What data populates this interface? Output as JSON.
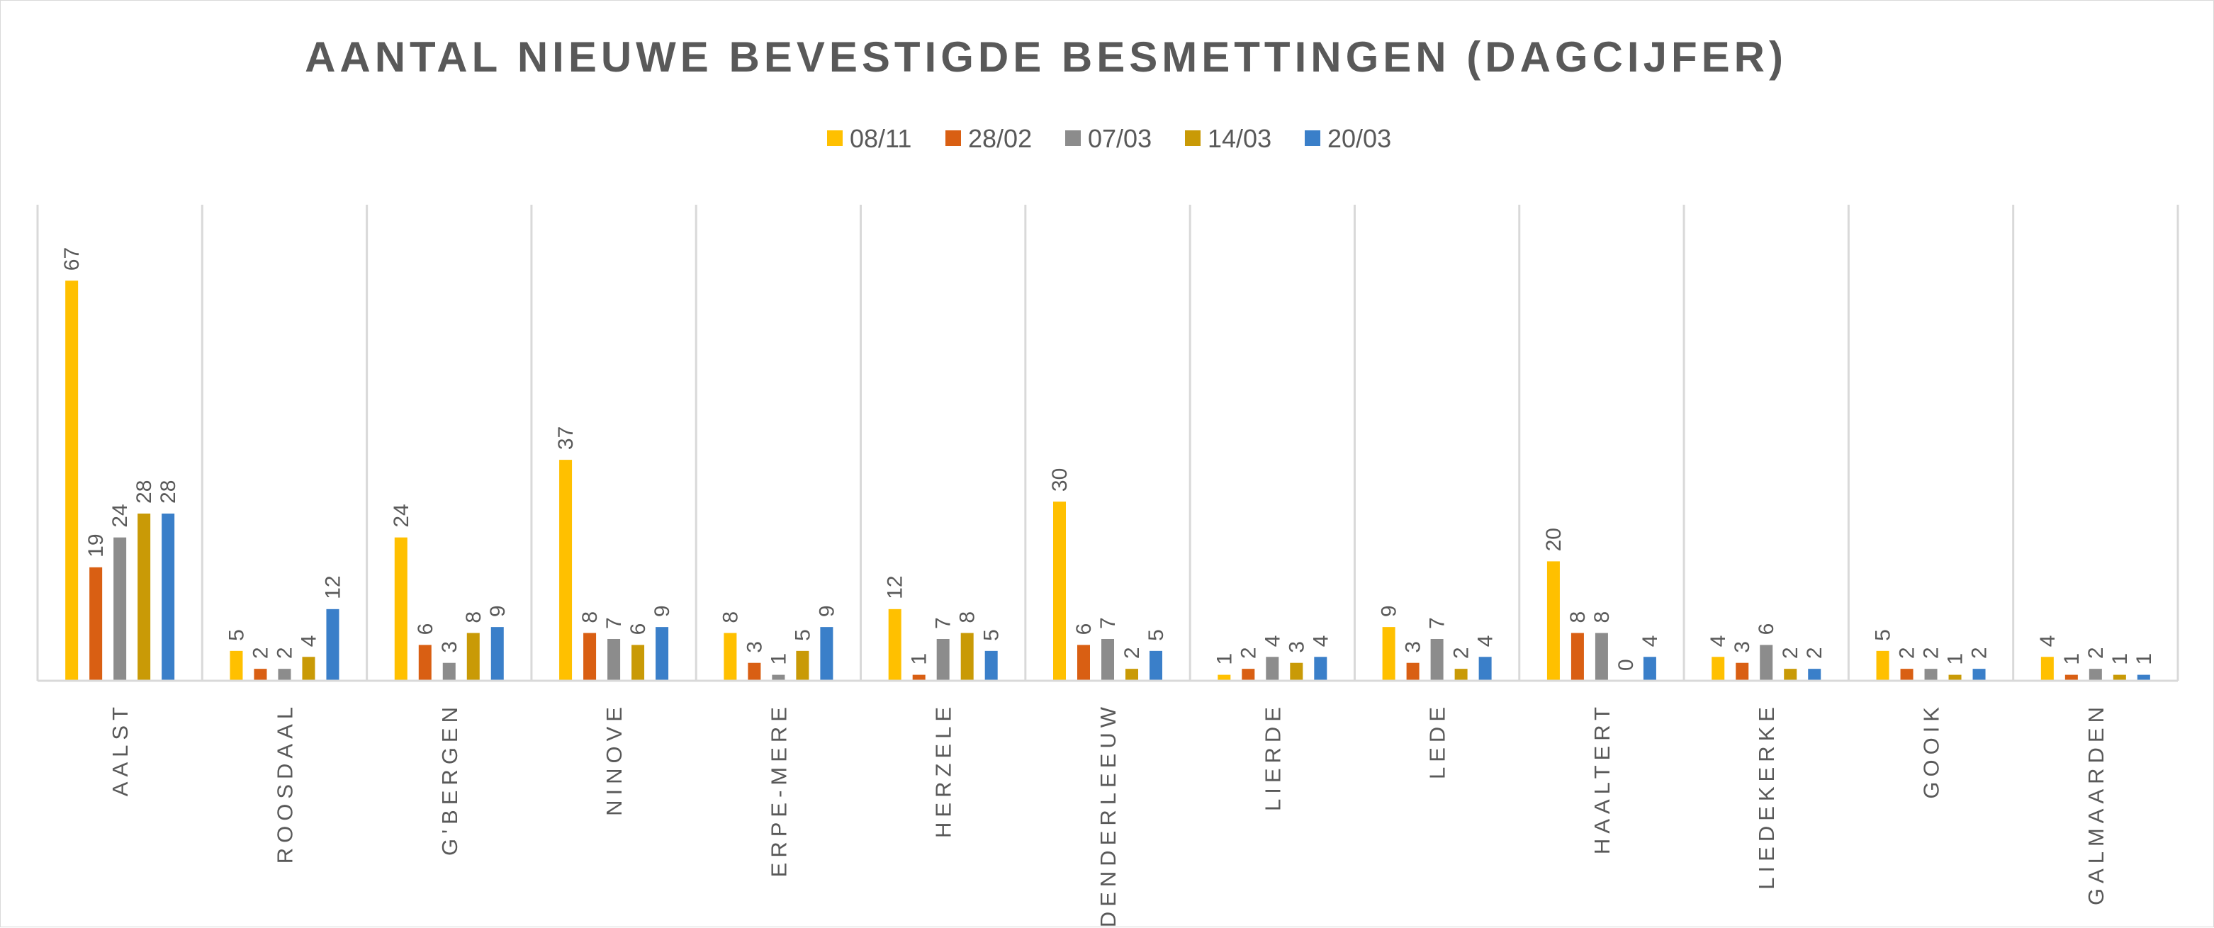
{
  "chart_data": {
    "type": "bar",
    "title": "AANTAL NIEUWE BEVESTIGDE BESMETTINGEN (DAGCIJFER)",
    "xlabel": "",
    "ylabel": "",
    "ylim": [
      0,
      80
    ],
    "grid": "vertical category separators",
    "legend_position": "top",
    "categories": [
      "AALST",
      "ROOSDAAL",
      "G'BERGEN",
      "NINOVE",
      "ERPE-MERE",
      "HERZELE",
      "DENDERLEEUW",
      "LIERDE",
      "LEDE",
      "HAALTERT",
      "LIEDEKERKE",
      "GOOIK",
      "GALMAARDEN"
    ],
    "series": [
      {
        "name": "08/11",
        "color": "#FFC000",
        "values": [
          67,
          5,
          24,
          37,
          8,
          12,
          30,
          1,
          9,
          20,
          4,
          5,
          4
        ]
      },
      {
        "name": "28/02",
        "color": "#D95F13",
        "values": [
          19,
          2,
          6,
          8,
          3,
          1,
          6,
          2,
          3,
          8,
          3,
          2,
          1
        ]
      },
      {
        "name": "07/03",
        "color": "#8C8C8C",
        "values": [
          24,
          2,
          3,
          7,
          1,
          7,
          7,
          4,
          7,
          8,
          6,
          2,
          2
        ]
      },
      {
        "name": "14/03",
        "color": "#C99A06",
        "values": [
          28,
          4,
          8,
          6,
          5,
          8,
          2,
          3,
          2,
          0,
          2,
          1,
          1
        ]
      },
      {
        "name": "20/03",
        "color": "#3A7FC9",
        "values": [
          28,
          12,
          9,
          9,
          9,
          5,
          5,
          4,
          4,
          4,
          2,
          2,
          1
        ]
      }
    ]
  }
}
